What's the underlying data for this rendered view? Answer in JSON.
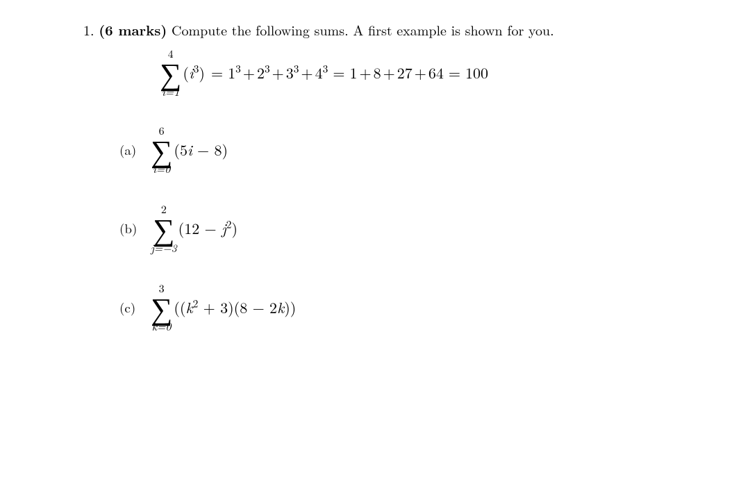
{
  "question": {
    "number": "1.",
    "marks": "(6 marks)",
    "text": "Compute the following sums. A first example is shown for you."
  },
  "example": {
    "upper": "4",
    "lower_var": "i",
    "lower_eq": "=",
    "lower_val": "1",
    "body_l": "(",
    "body_var": "i",
    "body_sup": "3",
    "body_r": ")",
    "rhs": "= 1³ + 2³ + 3³ + 4³ = 1 + 8 + 27 + 64 = 100"
  },
  "parts": {
    "a": {
      "label": "(a)",
      "upper": "6",
      "lower_var": "i",
      "lower_val": "0",
      "expr_open": "(",
      "coef": "5",
      "var1": "i",
      "minus": " − ",
      "const": "8",
      "expr_close": ")"
    },
    "b": {
      "label": "(b)",
      "upper": "2",
      "lower_var": "j",
      "lower_val": "−3",
      "expr_open": "(",
      "const": "12",
      "minus": " − ",
      "var1": "j",
      "sup": "2",
      "expr_close": ")"
    },
    "c": {
      "label": "(c)",
      "upper": "3",
      "lower_var": "k",
      "lower_val": "0",
      "expr_open": "((",
      "var1": "k",
      "sup1": "2",
      "plus": " + ",
      "c1": "3",
      "mid": ")(",
      "c2": "8",
      "minus": " − ",
      "coef2": "2",
      "var2": "k",
      "expr_close": "))"
    }
  }
}
